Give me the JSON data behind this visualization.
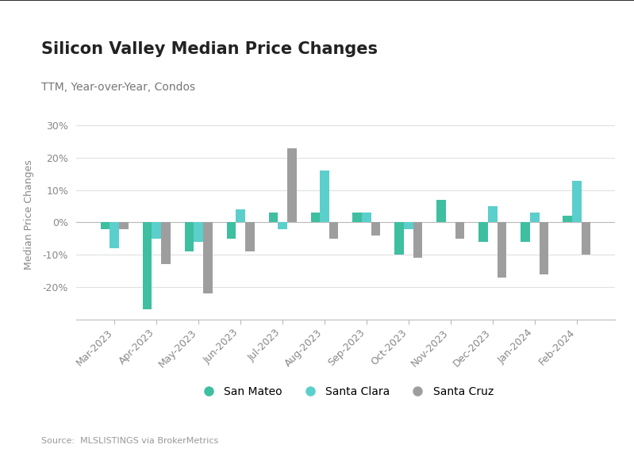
{
  "title": "Silicon Valley Median Price Changes",
  "subtitle": "TTM, Year-over-Year, Condos",
  "source": "Source:  MLSLISTINGS via BrokerMetrics",
  "ylabel": "Median Price Changes",
  "ylim": [
    -30,
    35
  ],
  "yticks": [
    -20,
    -10,
    0,
    10,
    20,
    30
  ],
  "categories": [
    "Mar-2023",
    "Apr-2023",
    "May-2023",
    "Jun-2023",
    "Jul-2023",
    "Aug-2023",
    "Sep-2023",
    "Oct-2023",
    "Nov-2023",
    "Dec-2023",
    "Jan-2024",
    "Feb-2024"
  ],
  "san_mateo": [
    -2,
    -27,
    -9,
    -5,
    3,
    3,
    3,
    -10,
    7,
    -6,
    -6,
    2
  ],
  "santa_clara": [
    -8,
    -5,
    -6,
    4,
    -2,
    16,
    3,
    -2,
    0,
    5,
    3,
    13
  ],
  "santa_cruz": [
    -2,
    -13,
    -22,
    -9,
    23,
    -5,
    -4,
    -11,
    -5,
    -17,
    -16,
    -10
  ],
  "san_mateo_color": "#3dbfa0",
  "santa_clara_color": "#5bcfcc",
  "santa_cruz_color": "#9e9e9e",
  "background_color": "#ffffff",
  "bar_width": 0.22,
  "title_fontsize": 15,
  "subtitle_fontsize": 10,
  "legend_labels": [
    "San Mateo",
    "Santa Clara",
    "Santa Cruz"
  ],
  "top_border_color": "#333333"
}
